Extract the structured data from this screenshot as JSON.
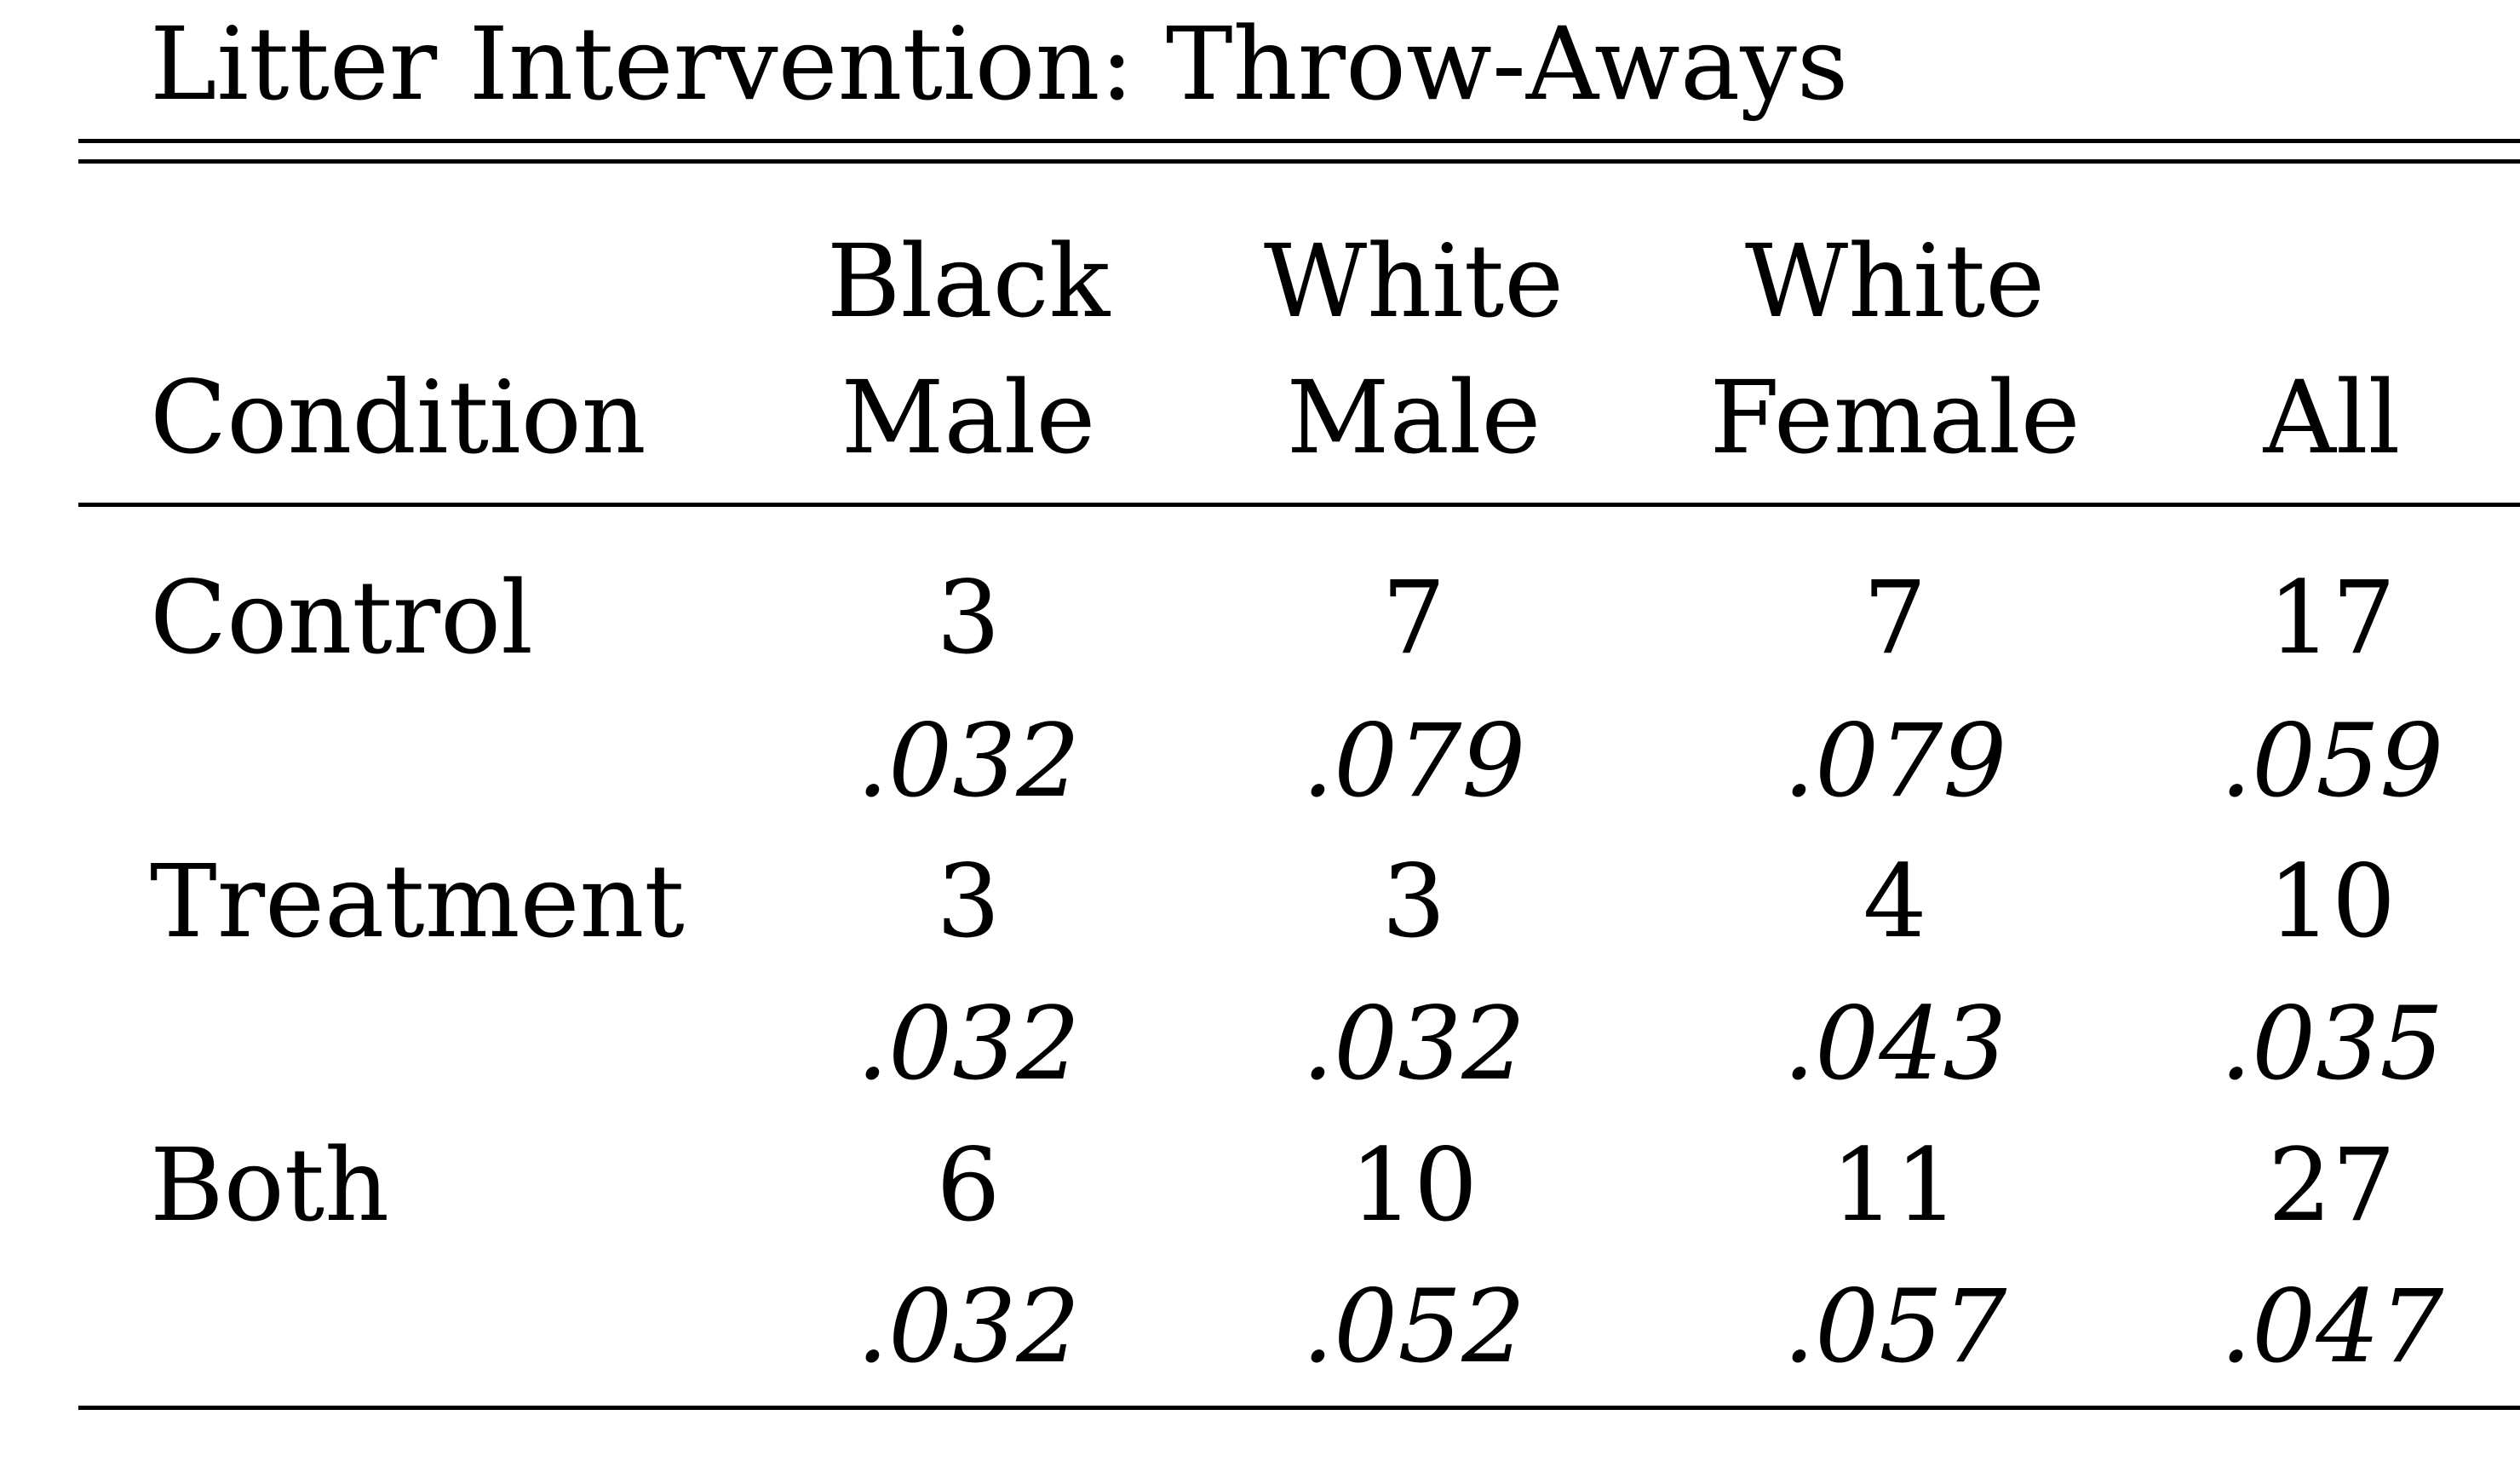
{
  "title": "Litter Intervention: Throw-Aways",
  "table": {
    "header": {
      "condition": "Condition",
      "columns": [
        {
          "line1": "Black",
          "line2": "Male"
        },
        {
          "line1": "White",
          "line2": "Male"
        },
        {
          "line1": "White",
          "line2": "Female"
        },
        {
          "line1": "",
          "line2": "All"
        }
      ]
    },
    "rows": [
      {
        "label": "Control",
        "counts": [
          "3",
          "7",
          "7",
          "17"
        ],
        "rates": [
          ".032",
          ".079",
          ".079",
          ".059"
        ]
      },
      {
        "label": "Treatment",
        "counts": [
          "3",
          "3",
          "4",
          "10"
        ],
        "rates": [
          ".032",
          ".032",
          ".043",
          ".035"
        ]
      },
      {
        "label": "Both",
        "counts": [
          "6",
          "10",
          "11",
          "27"
        ],
        "rates": [
          ".032",
          ".052",
          ".057",
          ".047"
        ]
      }
    ]
  }
}
